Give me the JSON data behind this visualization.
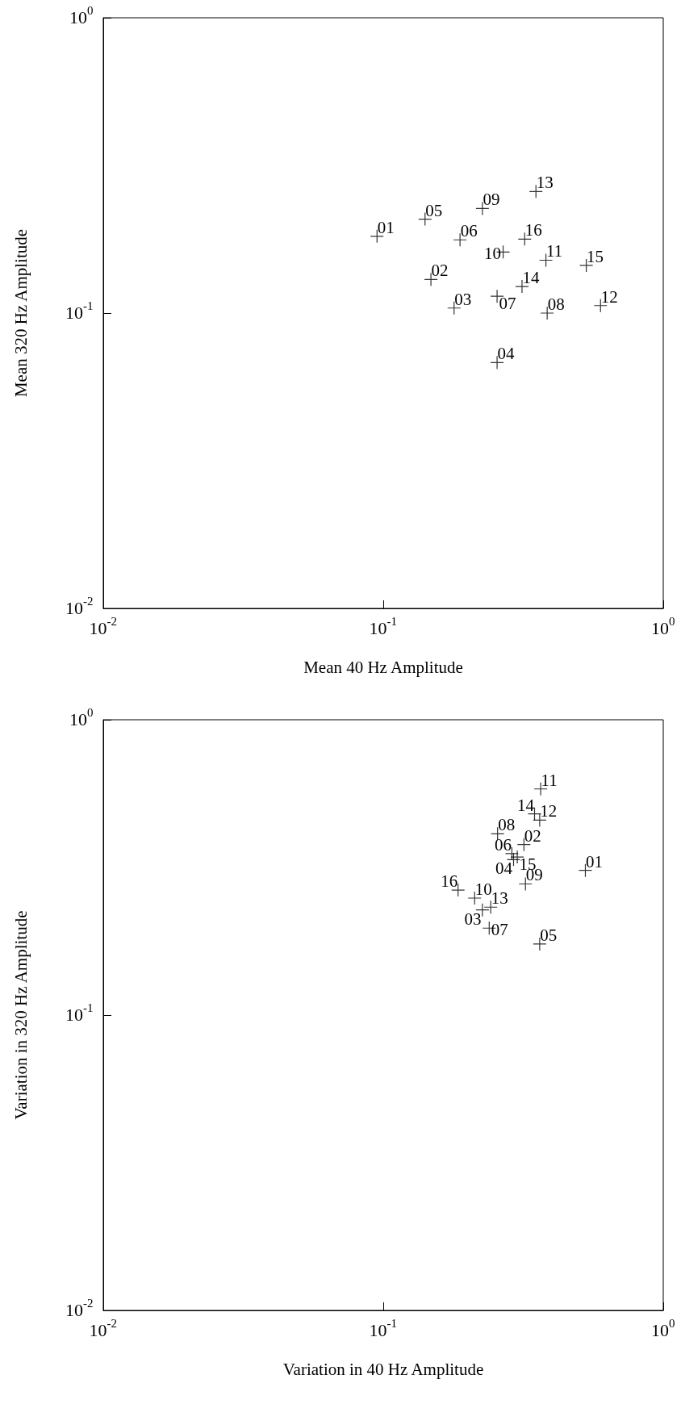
{
  "chart_data": [
    {
      "type": "scatter",
      "xlabel": "Mean 40 Hz Amplitude",
      "ylabel": "Mean 320 Hz Amplitude",
      "log": "xy",
      "marker": "cross",
      "color": "#000000",
      "xlim": [
        0.01,
        1
      ],
      "ylim": [
        0.01,
        1
      ],
      "xticks": [
        {
          "value": 0.01,
          "label": "10$^{-2}$"
        },
        {
          "value": 0.1,
          "label": "10$^{-1}$"
        },
        {
          "value": 1,
          "label": "10$^{0}$"
        }
      ],
      "yticks": [
        {
          "value": 0.01,
          "label": "10$^{-2}$"
        },
        {
          "value": 0.1,
          "label": "10$^{-1}$"
        },
        {
          "value": 1,
          "label": "10$^{0}$"
        }
      ],
      "x": [
        0.095,
        0.148,
        0.179,
        0.255,
        0.141,
        0.188,
        0.255,
        0.385,
        0.226,
        0.268,
        0.381,
        0.597,
        0.351,
        0.313,
        0.531,
        0.32
      ],
      "values": [
        0.182,
        0.13,
        0.104,
        0.068,
        0.208,
        0.177,
        0.114,
        0.1,
        0.226,
        0.161,
        0.151,
        0.106,
        0.258,
        0.123,
        0.145,
        0.178
      ],
      "annotations": [
        {
          "text": "01",
          "x": 0.095,
          "y": 0.182
        },
        {
          "text": "02",
          "x": 0.148,
          "y": 0.13
        },
        {
          "text": "03",
          "x": 0.179,
          "y": 0.104
        },
        {
          "text": "04",
          "x": 0.255,
          "y": 0.068
        },
        {
          "text": "05",
          "x": 0.141,
          "y": 0.208
        },
        {
          "text": "06",
          "x": 0.188,
          "y": 0.177
        },
        {
          "text": "07",
          "x": 0.255,
          "y": 0.114
        },
        {
          "text": "08",
          "x": 0.385,
          "y": 0.1
        },
        {
          "text": "09",
          "x": 0.226,
          "y": 0.226
        },
        {
          "text": "10",
          "x": 0.268,
          "y": 0.161
        },
        {
          "text": "11",
          "x": 0.381,
          "y": 0.151
        },
        {
          "text": "12",
          "x": 0.597,
          "y": 0.106
        },
        {
          "text": "13",
          "x": 0.351,
          "y": 0.258
        },
        {
          "text": "14",
          "x": 0.313,
          "y": 0.123
        },
        {
          "text": "15",
          "x": 0.531,
          "y": 0.145
        },
        {
          "text": "16",
          "x": 0.32,
          "y": 0.178
        }
      ]
    },
    {
      "type": "scatter",
      "xlabel": "Variation in 40 Hz Amplitude",
      "ylabel": "Variation in 320 Hz Amplitude",
      "log": "xy",
      "marker": "cross",
      "color": "#000000",
      "xlim": [
        0.01,
        1
      ],
      "ylim": [
        0.01,
        1
      ],
      "xticks": [
        {
          "value": 0.01,
          "label": "10$^{-2}$"
        },
        {
          "value": 0.1,
          "label": "10$^{-1}$"
        },
        {
          "value": 1,
          "label": "10$^{0}$"
        }
      ],
      "yticks": [
        {
          "value": 0.01,
          "label": "10$^{-2}$"
        },
        {
          "value": 0.1,
          "label": "10$^{-1}$"
        },
        {
          "value": 1,
          "label": "10$^{0}$"
        }
      ],
      "x": [
        0.527,
        0.318,
        0.226,
        0.292,
        0.362,
        0.288,
        0.239,
        0.256,
        0.322,
        0.212,
        0.365,
        0.362,
        0.242,
        0.347,
        0.301,
        0.185
      ],
      "values": [
        0.309,
        0.378,
        0.227,
        0.336,
        0.174,
        0.352,
        0.197,
        0.411,
        0.278,
        0.249,
        0.583,
        0.457,
        0.232,
        0.48,
        0.343,
        0.265
      ],
      "annotations": [
        {
          "text": "01",
          "x": 0.527,
          "y": 0.309
        },
        {
          "text": "02",
          "x": 0.318,
          "y": 0.378
        },
        {
          "text": "03",
          "x": 0.226,
          "y": 0.227
        },
        {
          "text": "04",
          "x": 0.292,
          "y": 0.336
        },
        {
          "text": "05",
          "x": 0.362,
          "y": 0.174
        },
        {
          "text": "06",
          "x": 0.288,
          "y": 0.352
        },
        {
          "text": "07",
          "x": 0.239,
          "y": 0.197
        },
        {
          "text": "08",
          "x": 0.256,
          "y": 0.411
        },
        {
          "text": "09",
          "x": 0.322,
          "y": 0.278
        },
        {
          "text": "10",
          "x": 0.212,
          "y": 0.249
        },
        {
          "text": "11",
          "x": 0.365,
          "y": 0.583
        },
        {
          "text": "12",
          "x": 0.362,
          "y": 0.457
        },
        {
          "text": "13",
          "x": 0.242,
          "y": 0.232
        },
        {
          "text": "14",
          "x": 0.347,
          "y": 0.48
        },
        {
          "text": "15",
          "x": 0.301,
          "y": 0.343
        },
        {
          "text": "16",
          "x": 0.185,
          "y": 0.265
        }
      ]
    }
  ]
}
